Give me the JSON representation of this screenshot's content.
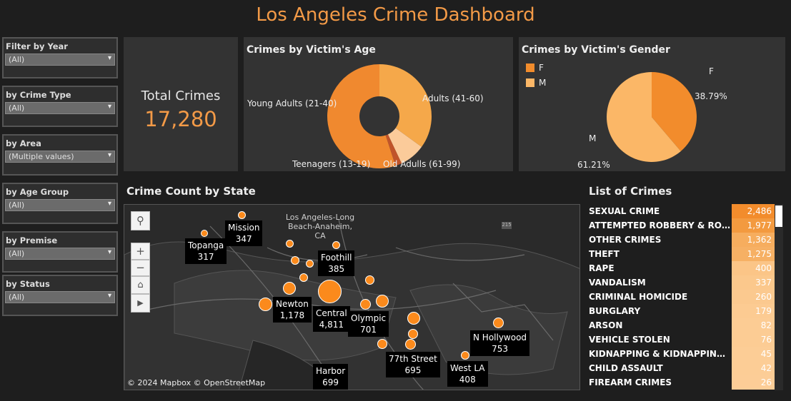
{
  "title": "Los Angeles Crime Dashboard",
  "filters": [
    {
      "label": "Filter by Year",
      "value": "(All)"
    },
    {
      "label": "by Crime Type",
      "value": "(All)"
    },
    {
      "label": "by Area",
      "value": "(Multiple values)"
    },
    {
      "label": "by Age Group",
      "value": "(All)"
    },
    {
      "label": "by Premise",
      "value": "(All)"
    },
    {
      "label": "by Status",
      "value": "(All)"
    }
  ],
  "kpi": {
    "label": "Total Crimes",
    "value": "17,280"
  },
  "age_chart": {
    "title": "Crimes by Victim's Age",
    "labels": {
      "young": "Young Adults (21-40)",
      "adults": "Adults (41-60)",
      "teens": "Teenagers (13-19)",
      "old": "Old Adulls (61-99)"
    }
  },
  "gender_chart": {
    "title": "Crimes by Victim's Gender",
    "legend": [
      "F",
      "M"
    ],
    "slice_labels": {
      "f_name": "F",
      "f_pct": "38.79%",
      "m_name": "M",
      "m_pct": "61.21%"
    }
  },
  "chart_data": [
    {
      "type": "pie",
      "title": "Crimes by Victim's Age",
      "categories": [
        "Adults (41-60)",
        "Old Adulls (61-99)",
        "Teenagers (13-19)",
        "Young Adults (21-40)"
      ],
      "values": [
        35,
        8,
        2,
        55
      ],
      "colors": [
        "#f5a84a",
        "#fbcb9a",
        "#c0542a",
        "#f0892f"
      ]
    },
    {
      "type": "pie",
      "title": "Crimes by Victim's Gender",
      "categories": [
        "F",
        "M"
      ],
      "values": [
        38.79,
        61.21
      ],
      "colors": [
        "#f28c2c",
        "#fbb767"
      ]
    }
  ],
  "map": {
    "title": "Crime Count by State",
    "region_label": "Los Angeles-Long Beach-Anaheim, CA",
    "highway": "215",
    "copyright": "© 2024 Mapbox  © OpenStreetMap",
    "cities": [
      {
        "name": "Mission",
        "count": "347"
      },
      {
        "name": "Topanga",
        "count": "317"
      },
      {
        "name": "Foothill",
        "count": "385"
      },
      {
        "name": "Newton",
        "count": "1,178"
      },
      {
        "name": "Central",
        "count": "4,811"
      },
      {
        "name": "Olympic",
        "count": "701"
      },
      {
        "name": "N Hollywood",
        "count": "753"
      },
      {
        "name": "77th Street",
        "count": "695"
      },
      {
        "name": "West LA",
        "count": "408"
      },
      {
        "name": "Harbor",
        "count": "699"
      }
    ]
  },
  "crime_list": {
    "title": "List of Crimes",
    "rows": [
      {
        "name": "SEXUAL CRIME",
        "count": "2,486",
        "color": "#f28c2c"
      },
      {
        "name": "ATTEMPTED ROBBERY & ROBBERY",
        "count": "1,977",
        "color": "#f39a3f"
      },
      {
        "name": "OTHER CRIMES",
        "count": "1,362",
        "color": "#f6ad5e"
      },
      {
        "name": "THEFT",
        "count": "1,275",
        "color": "#f6b064"
      },
      {
        "name": "RAPE",
        "count": "400",
        "color": "#fbc587"
      },
      {
        "name": "VANDALISM",
        "count": "337",
        "color": "#fbc88c"
      },
      {
        "name": "CRIMINAL HOMICIDE",
        "count": "260",
        "color": "#fbc98f"
      },
      {
        "name": "BURGLARY",
        "count": "179",
        "color": "#fccb92"
      },
      {
        "name": "ARSON",
        "count": "82",
        "color": "#fccc94"
      },
      {
        "name": "VEHICLE STOLEN",
        "count": "76",
        "color": "#fccc94"
      },
      {
        "name": "KIDNAPPING & KIDNAPPING - GRA...",
        "count": "45",
        "color": "#fccd96"
      },
      {
        "name": "CHILD ASSAULT",
        "count": "42",
        "color": "#fccd96"
      },
      {
        "name": "FIREARM CRIMES",
        "count": "26",
        "color": "#fccd97"
      }
    ]
  }
}
